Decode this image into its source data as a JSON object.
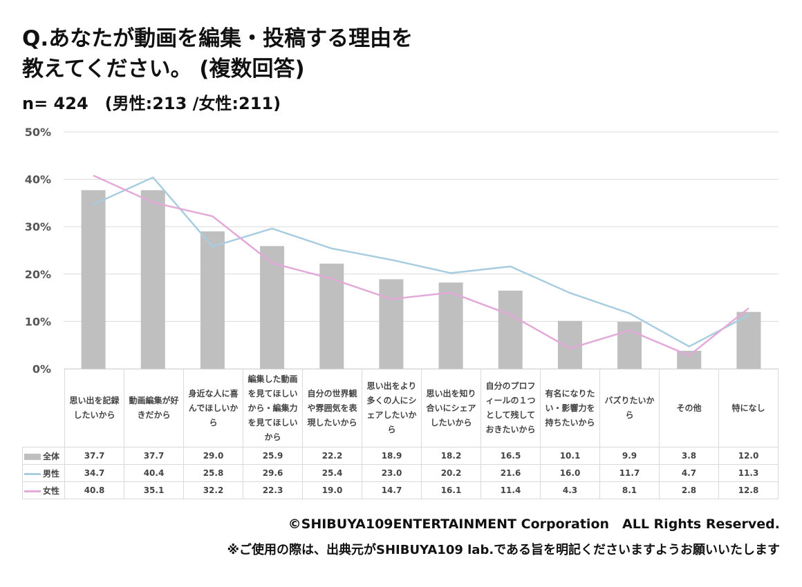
{
  "header": {
    "title_line1": "Q.あなたが動画を編集・投稿する理由を",
    "title_line2": "教えてください。 (複数回答)",
    "sample": "n= 424　(男性:213 /女性:211)"
  },
  "colors": {
    "all": "#bfbfbf",
    "male": "#a9cde0",
    "female": "#e3a9d8",
    "grid": "#d9d9d9"
  },
  "chart_data": {
    "type": "bar+line",
    "ylim": [
      0,
      50
    ],
    "yticks": [
      "0%",
      "10%",
      "20%",
      "30%",
      "40%",
      "50%"
    ],
    "categories": [
      "思い出を記録したいから",
      "動画編集が好きだから",
      "身近な人に喜んでほしいから",
      "編集した動画を見てほしいから・編集力を見てほしいから",
      "自分の世界観や雰囲気を表現したいから",
      "思い出をより多くの人にシェアしたいから",
      "思い出を知り合いにシェアしたいから",
      "自分のプロフィールの１つとして残しておきたいから",
      "有名になりたい・影響力を持ちたいから",
      "バズりたいから",
      "その他",
      "特になし"
    ],
    "series": [
      {
        "name": "全体",
        "type": "bar",
        "values": [
          "37.7",
          "37.7",
          "29.0",
          "25.9",
          "22.2",
          "18.9",
          "18.2",
          "16.5",
          "10.1",
          "9.9",
          "3.8",
          "12.0"
        ]
      },
      {
        "name": "男性",
        "type": "line",
        "values": [
          "34.7",
          "40.4",
          "25.8",
          "29.6",
          "25.4",
          "23.0",
          "20.2",
          "21.6",
          "16.0",
          "11.7",
          "4.7",
          "11.3"
        ]
      },
      {
        "name": "女性",
        "type": "line",
        "values": [
          "40.8",
          "35.1",
          "32.2",
          "22.3",
          "19.0",
          "14.7",
          "16.1",
          "11.4",
          "4.3",
          "8.1",
          "2.8",
          "12.8"
        ]
      }
    ]
  },
  "footer": {
    "copyright": "©SHIBUYA109ENTERTAINMENT Corporation　ALL Rights Reserved.",
    "note": "※ご使用の際は、出典元がSHIBUYA109 lab.である旨を明記くださいますようお願いいたします"
  }
}
